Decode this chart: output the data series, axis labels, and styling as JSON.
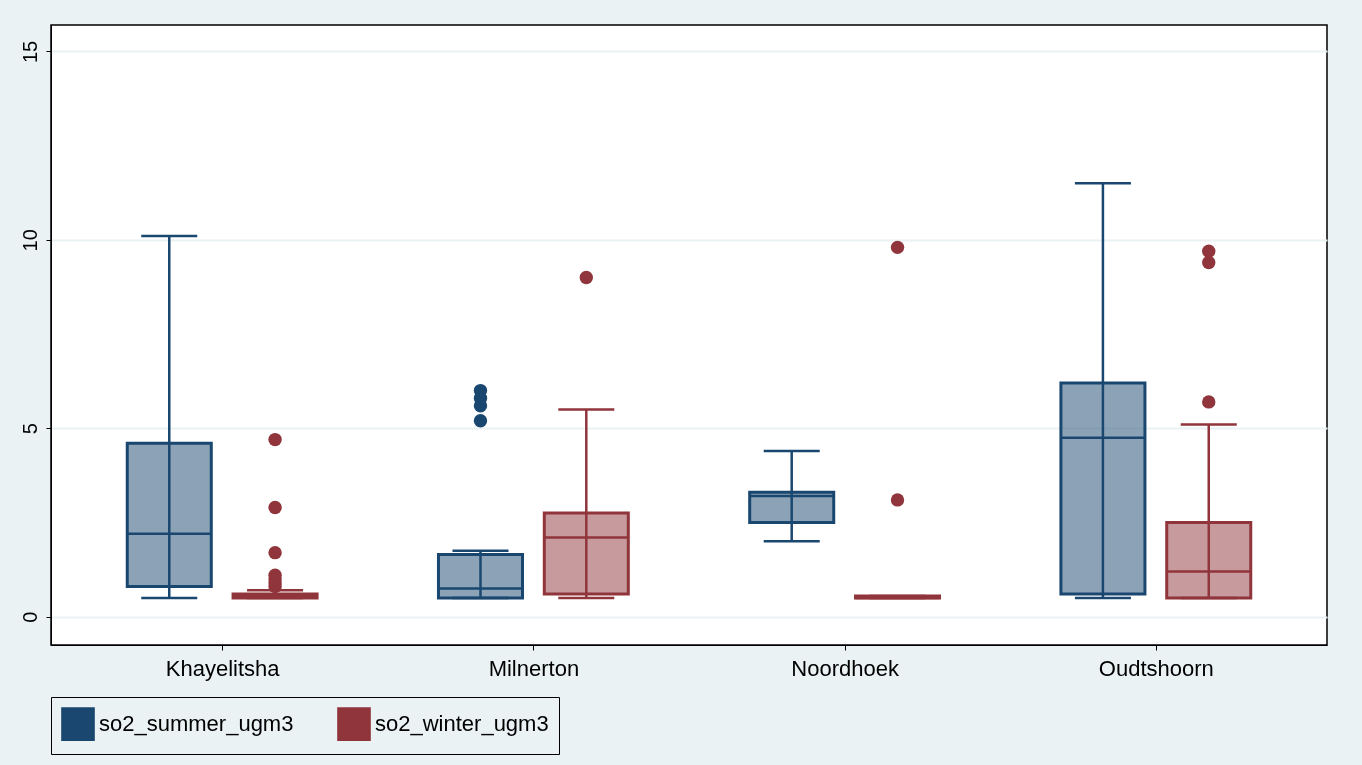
{
  "chart_data": {
    "type": "box",
    "categories": [
      "Khayelitsha",
      "Milnerton",
      "Noordhoek",
      "Oudtshoorn"
    ],
    "series": [
      {
        "name": "so2_summer_ugm3",
        "color": "#1a476f",
        "boxes": [
          {
            "low": 0.5,
            "q1": 0.8,
            "median": 2.2,
            "q3": 4.6,
            "high": 10.1
          },
          {
            "low": 0.5,
            "q1": 0.5,
            "median": 0.75,
            "q3": 1.65,
            "high": 1.75,
            "outliers": [
              5.2,
              5.6,
              5.8,
              6.0
            ]
          },
          {
            "low": 2.0,
            "q1": 2.5,
            "median": 3.2,
            "q3": 3.3,
            "high": 4.4
          },
          {
            "low": 0.5,
            "q1": 0.6,
            "median": 4.75,
            "q3": 6.2,
            "high": 11.5
          }
        ]
      },
      {
        "name": "so2_winter_ugm3",
        "color": "#90353b",
        "boxes": [
          {
            "low": 0.5,
            "q1": 0.5,
            "median": 0.55,
            "q3": 0.6,
            "high": 0.7,
            "outliers": [
              0.8,
              0.9,
              1.0,
              1.1,
              1.7,
              2.9,
              4.7
            ]
          },
          {
            "low": 0.5,
            "q1": 0.6,
            "median": 2.1,
            "q3": 2.75,
            "high": 5.5,
            "outliers": [
              9.0
            ]
          },
          {
            "low": 0.5,
            "q1": 0.5,
            "median": 0.5,
            "q3": 0.55,
            "high": 0.55,
            "outliers": [
              3.1,
              9.8
            ]
          },
          {
            "low": 0.5,
            "q1": 0.5,
            "median": 1.2,
            "q3": 2.5,
            "high": 5.1,
            "outliers": [
              5.7,
              9.4,
              9.7
            ]
          }
        ]
      }
    ],
    "ylim": [
      -0.75,
      15.7
    ],
    "yticks": [
      0,
      5,
      10,
      15
    ],
    "grid": "y",
    "legend": "bottom",
    "marker": "circle"
  }
}
